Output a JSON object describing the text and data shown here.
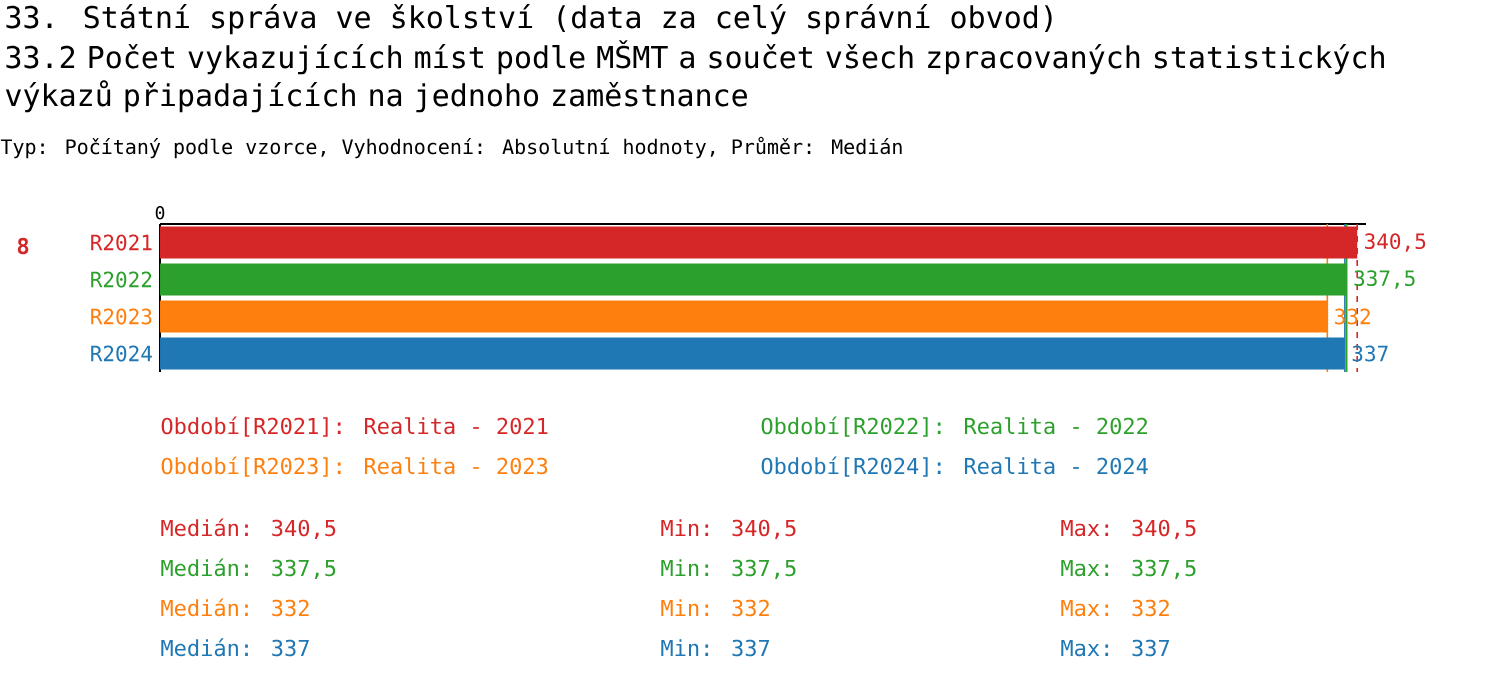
{
  "chart_data": {
    "type": "bar",
    "orientation": "horizontal",
    "title": "33. Státní správa ve školství (data za celý správní obvod)",
    "subtitle": "33.2 Počet vykazujících míst podle MŠMT a součet všech zpracovaných statistických výkazů připadajících na jednoho zaměstnance",
    "categories": [
      "R2021",
      "R2022",
      "R2023",
      "R2024"
    ],
    "values": [
      340.5,
      337.5,
      332,
      337
    ],
    "value_labels": [
      "340,5",
      "337,5",
      "332",
      "337"
    ],
    "colors": [
      "#d62728",
      "#2ca02c",
      "#ff7f0e",
      "#1f77b4"
    ],
    "xlim": [
      0,
      343
    ],
    "ref_lines": [
      {
        "axis": "x",
        "value": 332,
        "color": "#ff7f0e",
        "line_style": "solid"
      },
      {
        "axis": "x",
        "value": 337,
        "color": "#1f77b4",
        "line_style": "solid"
      },
      {
        "axis": "x",
        "value": 337.5,
        "color": "#2ca02c",
        "line_style": "solid"
      },
      {
        "axis": "x",
        "value": 340.5,
        "color": "#d62728",
        "line_style": "dashed"
      }
    ],
    "annotations": [
      "Typ: Počítaný podle vzorce, Vyhodnocení: Absolutní hodnoty, Průměr: Medián",
      "8",
      "Období[R2021]: Realita - 2021",
      "Období[R2022]: Realita - 2022",
      "Období[R2023]: Realita - 2023",
      "Období[R2024]: Realita - 2024",
      "Medián: 340,5",
      "Min: 340,5",
      "Max: 340,5",
      "Medián: 337,5",
      "Min: 337,5",
      "Max: 337,5",
      "Medián: 332",
      "Min: 332",
      "Max: 332",
      "Medián: 337",
      "Min: 337",
      "Max: 337",
      "0"
    ]
  }
}
